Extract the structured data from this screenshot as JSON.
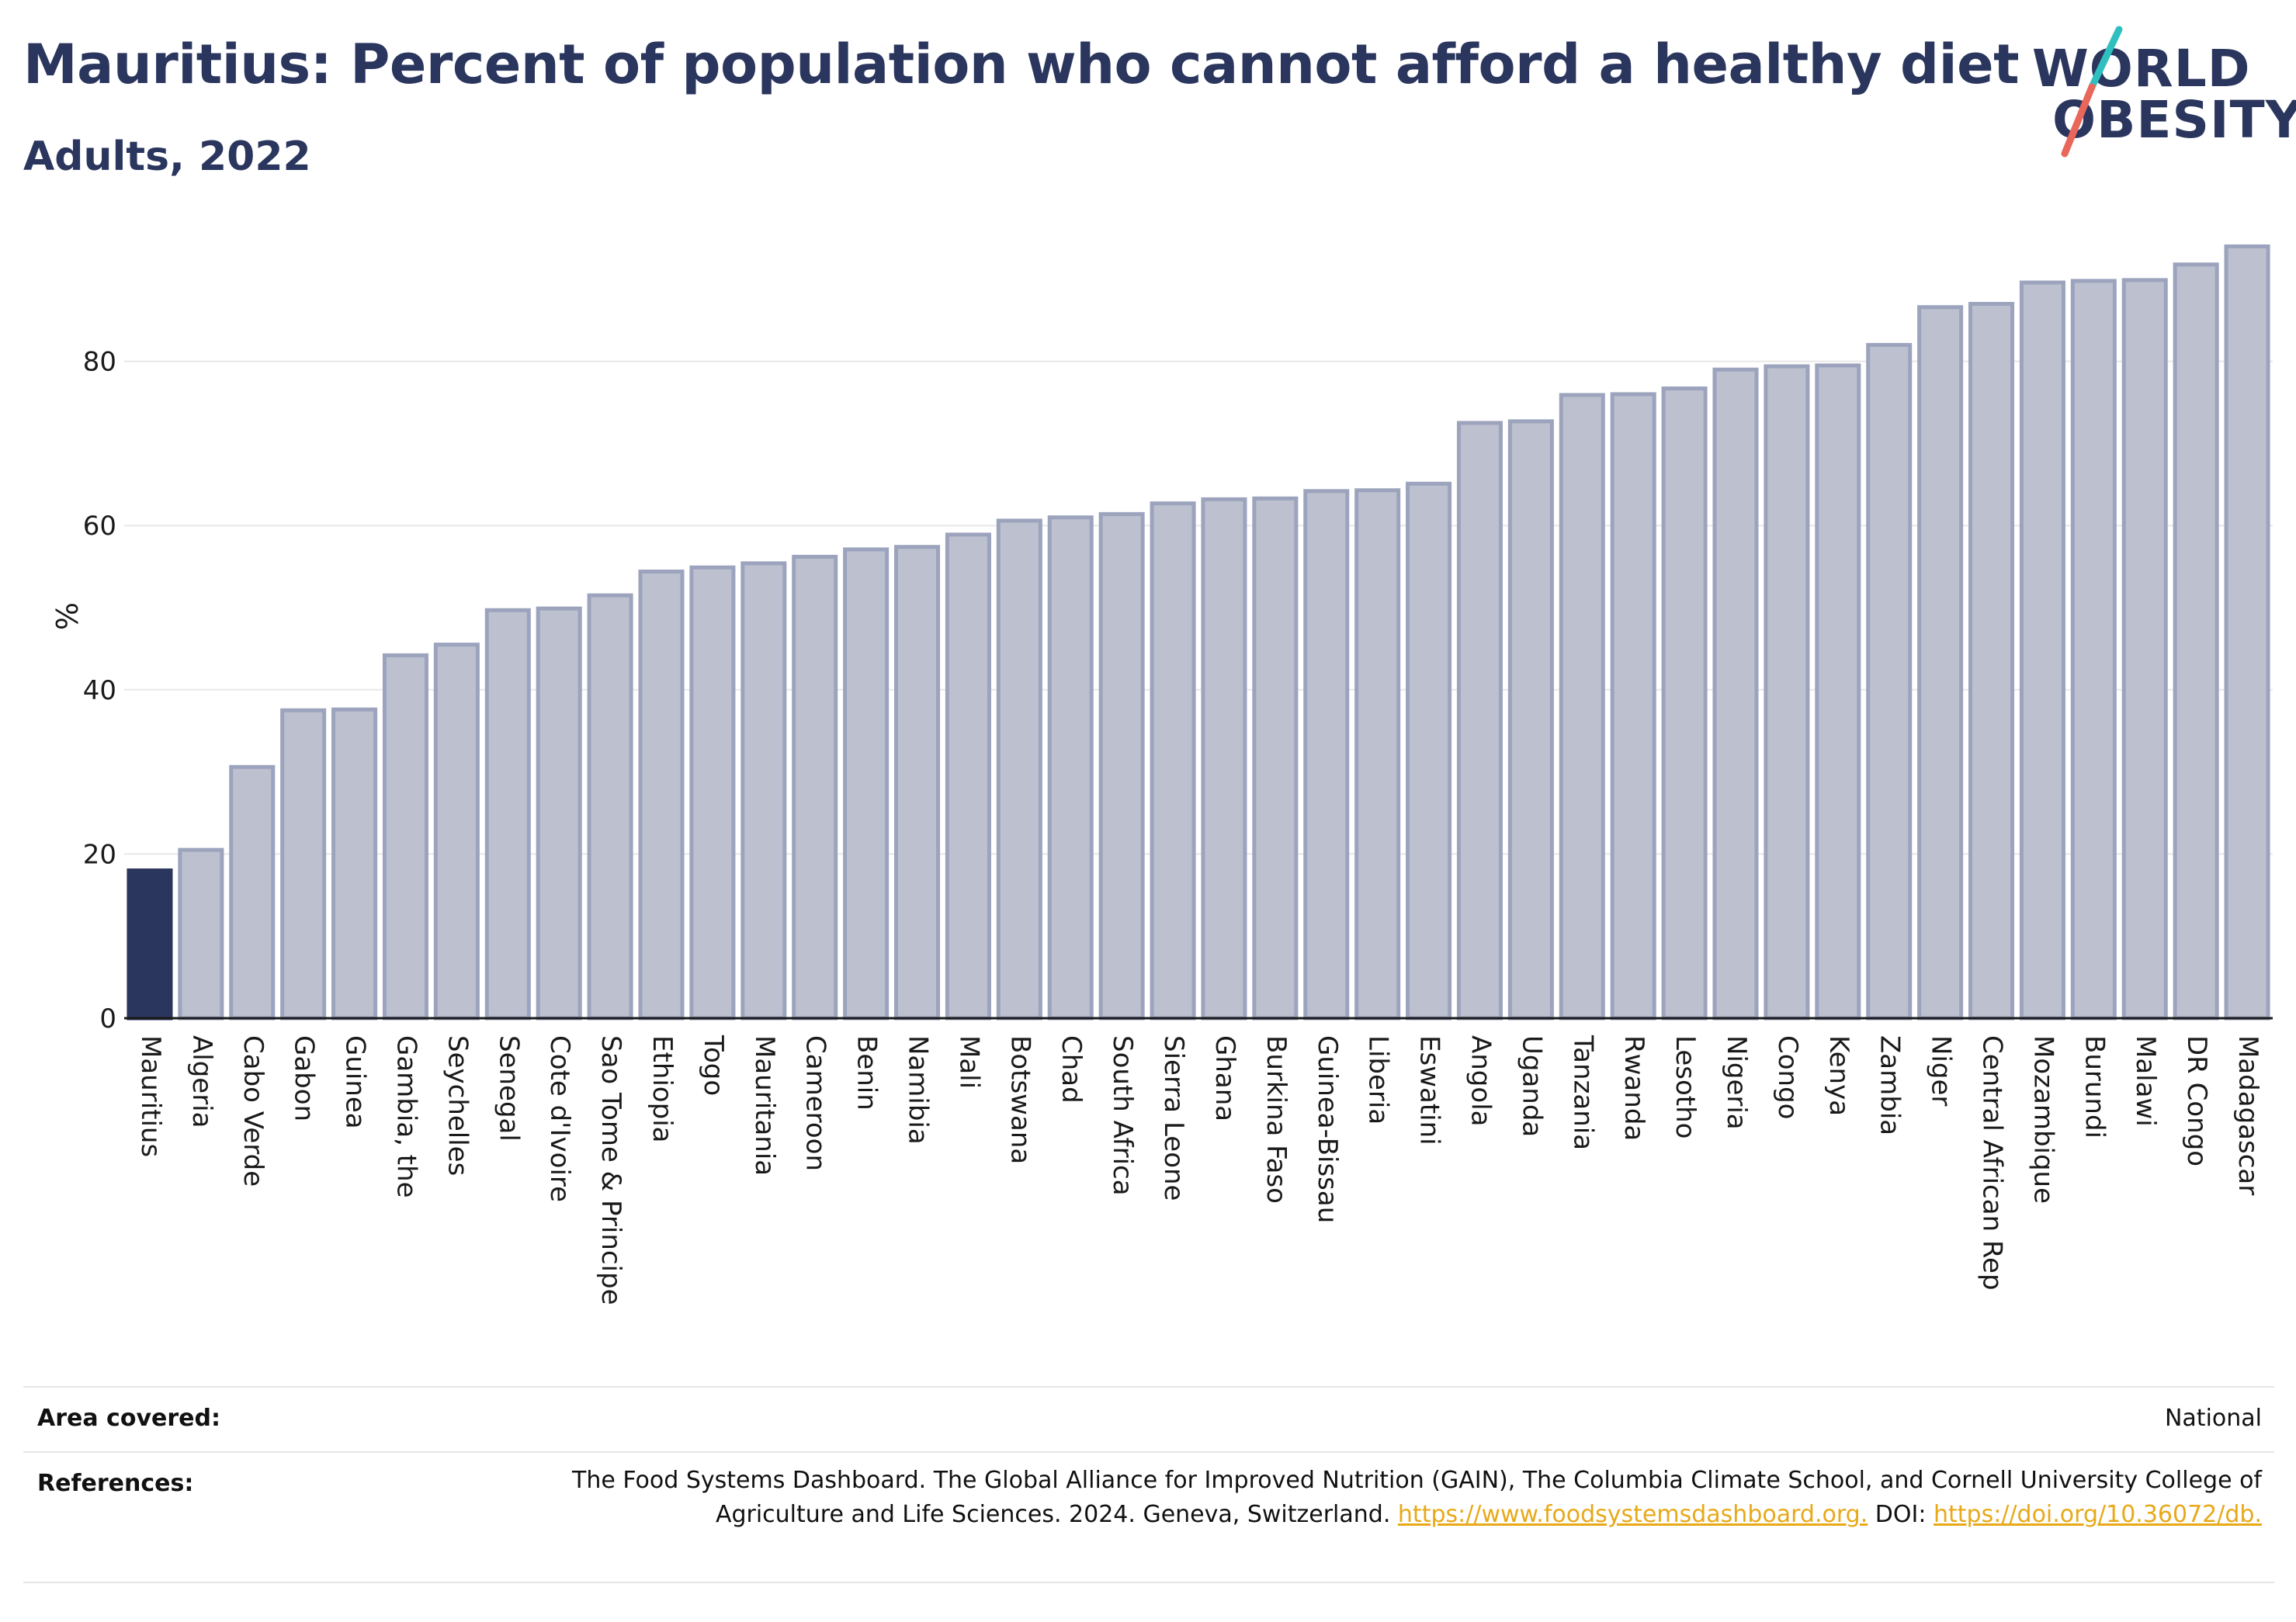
{
  "header": {
    "title": "Mauritius: Percent of population who cannot afford a healthy diet",
    "subtitle": "Adults, 2022"
  },
  "logo": {
    "line1": "WORLD",
    "line2": "OBESITY"
  },
  "chart_data": {
    "type": "bar",
    "title": "Mauritius: Percent of population who cannot afford a healthy diet",
    "subtitle": "Adults, 2022",
    "ylabel": "%",
    "xlabel": "",
    "ylim": [
      0,
      94
    ],
    "yticks": [
      0,
      20,
      40,
      60,
      80
    ],
    "grid": true,
    "highlight": "Mauritius",
    "categories": [
      "Mauritius",
      "Algeria",
      "Cabo Verde",
      "Gabon",
      "Guinea",
      "Gambia, the",
      "Seychelles",
      "Senegal",
      "Cote d'Ivoire",
      "Sao Tome & Principe",
      "Ethiopia",
      "Togo",
      "Mauritania",
      "Cameroon",
      "Benin",
      "Namibia",
      "Mali",
      "Botswana",
      "Chad",
      "South Africa",
      "Sierra Leone",
      "Ghana",
      "Burkina Faso",
      "Guinea-Bissau",
      "Liberia",
      "Eswatini",
      "Angola",
      "Uganda",
      "Tanzania",
      "Rwanda",
      "Lesotho",
      "Nigeria",
      "Congo",
      "Kenya",
      "Zambia",
      "Niger",
      "Central African Rep",
      "Mozambique",
      "Burundi",
      "Malawi",
      "DR Congo",
      "Madagascar"
    ],
    "values": [
      18.0,
      20.5,
      30.6,
      37.5,
      37.6,
      44.2,
      45.5,
      49.7,
      49.9,
      51.5,
      54.4,
      54.9,
      55.4,
      56.2,
      57.1,
      57.4,
      58.9,
      60.6,
      61.0,
      61.4,
      62.7,
      63.2,
      63.3,
      64.2,
      64.3,
      65.1,
      72.5,
      72.7,
      75.9,
      76.0,
      76.7,
      79.0,
      79.4,
      79.5,
      82.0,
      86.6,
      87.0,
      89.6,
      89.8,
      89.9,
      91.8,
      94.0
    ],
    "colors": {
      "highlight": "#2b365e",
      "bar": "#bcc0cf",
      "bar_border": "#9ca3bd"
    }
  },
  "footer": {
    "area_label": "Area covered:",
    "area_value": "National",
    "refs_label": "References:",
    "refs_text": "The Food Systems Dashboard. The Global Alliance for Improved Nutrition (GAIN), The Columbia Climate School, and Cornell University College of Agriculture and Life Sciences. 2024. Geneva, Switzerland.",
    "refs_link1": "https://www.foodsystemsdashboard.org.",
    "refs_doi": "DOI:",
    "refs_link2": "https://doi.org/10.36072/db."
  }
}
